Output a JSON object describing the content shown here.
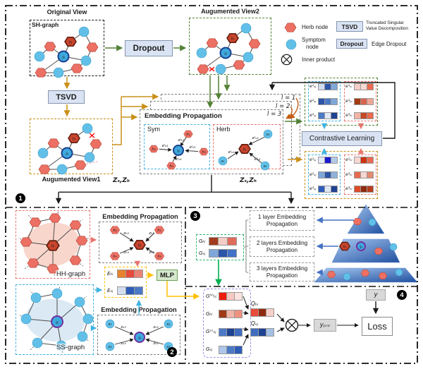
{
  "colors": {
    "herb": "#ec7063",
    "herb_stroke": "#b03a2e",
    "herb_special": "#c8452e",
    "herb_special_stroke": "#5f1a0a",
    "symptom": "#62c0e8",
    "symptom_stroke": "#3a9cc8",
    "symptom_special": "#3fa8dc",
    "symptom_special_stroke": "#17408f",
    "purple_ring": "#7030a0",
    "green": "#538135",
    "gold": "#c99018",
    "bright_green": "#00b050",
    "cyan": "#3fb3e0",
    "pink": "#e8756d",
    "blue": "#4472c4",
    "yellow": "#ffc000",
    "orange_curl": "#c55a11",
    "button_fill": "#dae3f3",
    "button_border": "#8496b0",
    "gray_box": "#d9d9d9",
    "mlp_fill": "#d5e8cc",
    "mlp_border": "#6da258",
    "purple_box_border": "#9f8fe8",
    "e_box_border": "#ffc000",
    "g_box_border": "#2eb872"
  },
  "badges": [
    "1",
    "2",
    "3",
    "4"
  ],
  "top": {
    "original_view": "Original View",
    "sh_label": "SH-graph",
    "dropout": "Dropout",
    "tsvd": "TSVD",
    "av2_title": "Augumented View2",
    "av1_title": "Augumented View1",
    "h_label": "hᵢ",
    "s_label": "sⱼ"
  },
  "legend": {
    "herb": "Herb node",
    "symptom_line1": "Symptom",
    "symptom_line2": "node",
    "tsvd": "TSVD",
    "tsvd_desc_line1": "Truncated Singular",
    "tsvd_desc_line2": "Value Decomposition",
    "dropout": "Dropout",
    "dropout_desc": "Edge Dropout",
    "inner_product": "Inner product"
  },
  "ep": {
    "title": "Embedding Propagation",
    "layers": [
      "l = 1",
      "l = 2",
      "l = 3"
    ],
    "sym": {
      "label": "Sym",
      "center": "sⱼ",
      "neighbors": [
        {
          "node": "h₁",
          "edge": "eˡₕ₁"
        },
        {
          "node": "h₂",
          "edge": "eˡₕ₂"
        },
        {
          "node": "h₃",
          "edge": "eˡₕ₃"
        },
        {
          "node": "h₄",
          "edge": "eˡₕ₄"
        }
      ]
    },
    "herb": {
      "label": "Herb",
      "center": "hᵢ",
      "neighbors": [
        {
          "node": "s₄",
          "edge": "eˡₛ₄"
        },
        {
          "node": "s₁",
          "edge": "eˡₛ₁"
        },
        {
          "node": "s₃",
          "edge": "eˡₛ₃"
        }
      ]
    }
  },
  "z_labels": {
    "left": "Zₛ,Zₕ",
    "right": "Zₛ,Zₕ"
  },
  "contrastive": {
    "button": "Contrastive Learning",
    "view2": {
      "sym_rows": [
        {
          "label": "e¹ₛⱼ",
          "cells": [
            "#cfdcef",
            "#2b55a8",
            "#7fa7d9"
          ]
        },
        {
          "label": "e²ₛⱼ",
          "cells": [
            "#2b55a8",
            "#4b79c6",
            "#7fa7d9"
          ]
        },
        {
          "label": "e³ₛⱼ",
          "cells": [
            "#4b79c6",
            "#dfe8f5",
            "#1e4191"
          ]
        }
      ],
      "herb_rows": [
        {
          "label": "e¹ₕᵢ",
          "cells": [
            "#f4cdc6",
            "#f7d8d2",
            "#e96a50"
          ]
        },
        {
          "label": "e²ₕᵢ",
          "cells": [
            "#a33c12",
            "#d96450",
            "#efa795"
          ]
        },
        {
          "label": "e³ₕᵢ",
          "cells": [
            "#f2b4a6",
            "#c24a28",
            "#e96a50"
          ]
        }
      ]
    },
    "view1": {
      "sym_rows": [
        {
          "label": "e¹ₛⱼ",
          "cells": [
            "#e2eaf6",
            "#1b1bd0",
            "#b3c9e8"
          ]
        },
        {
          "label": "e²ₛⱼ",
          "cells": [
            "#7fa7d9",
            "#2b55a8",
            "#8fb2dd"
          ]
        },
        {
          "label": "e³ₛⱼ",
          "cells": [
            "#2e5cb8",
            "#dfe8f5",
            "#1e4191"
          ]
        }
      ],
      "herb_rows": [
        {
          "label": "e¹ₕᵢ",
          "cells": [
            "#f7d8d2",
            "#cd3412",
            "#e96a50"
          ]
        },
        {
          "label": "e²ₕᵢ",
          "cells": [
            "#e96a50",
            "#f7d8d2",
            "#e28a72"
          ]
        },
        {
          "label": "e³ₕᵢ",
          "cells": [
            "#dc4a28",
            "#8e2a10",
            "#b53c1c"
          ]
        }
      ]
    }
  },
  "sec2": {
    "hh": {
      "graph_label": "HH-graph",
      "ep_title": "Embedding Propagation",
      "center": "hᵢ",
      "neighbors": [
        {
          "node": "h₂",
          "edge": "zₕ₂"
        },
        {
          "node": "h₁",
          "edge": "zₕ₁"
        },
        {
          "node": "h₄",
          "edge": "zₕ₄"
        },
        {
          "node": "h₅",
          "edge": "zₕ₅"
        }
      ]
    },
    "ss": {
      "graph_label": "SS-graph",
      "ep_title": "Embedding Propagation",
      "center": "sⱼ",
      "neighbors": [
        {
          "node": "s₃",
          "edge": "zₛ₃"
        },
        {
          "node": "s₂",
          "edge": "zₛ₂"
        },
        {
          "node": "s₄",
          "edge": "zₛ₄"
        },
        {
          "node": "s₅",
          "edge": "zₛ₅"
        }
      ]
    },
    "e_rows": [
      {
        "label": "Eₕᵢ",
        "cells": [
          "#e8822c",
          "#e84a3c",
          "#ea8374"
        ]
      },
      {
        "label": "Eₛⱼ",
        "cells": [
          "#d4def0",
          "#2e5cb8",
          "#4b79c6"
        ]
      }
    ],
    "mlp": "MLP"
  },
  "sec3": {
    "g_rows": [
      {
        "label": "Gₕᵢ",
        "cells": [
          "#a33c1e",
          "#f4cdc6",
          "#e06b5a"
        ]
      },
      {
        "label": "Gₛⱼ",
        "cells": [
          "#7fa7d9",
          "#2b55a8",
          "#3f72c8"
        ]
      }
    ],
    "layer_boxes": [
      "1 layer Embedding Propagation",
      "2 layers Embedding Propagation",
      "3 layers Embedding Propagation"
    ],
    "pyramid": {
      "herb": "hᵢ",
      "sym": "sⱼ"
    }
  },
  "sec4": {
    "g_rows": [
      {
        "label": "Gʰʰₕᵢ",
        "cells": [
          "#ee1c0c",
          "#f6c9c2",
          "#fbe4e0"
        ]
      },
      {
        "label": "Gₕᵢ",
        "cells": [
          "#9e3a16",
          "#f2b4a6",
          "#ee9180"
        ]
      },
      {
        "label": "Gˢˢₛⱼ",
        "cells": [
          "#4b79c6",
          "#1e4191",
          "#3f6cbe"
        ]
      },
      {
        "label": "Gₛⱼ",
        "cells": [
          "#aec7e8",
          "#4b79c6",
          "#2e5cb8"
        ]
      }
    ],
    "q_rows": [
      {
        "label": "Qₕᵢ",
        "cells": [
          "#e84a3c",
          "#8e2a10",
          "#f6cfc8"
        ]
      },
      {
        "label": "Qₛⱼ",
        "cells": [
          "#3f6cbe",
          "#1e4191",
          "#a3bfe4"
        ]
      }
    ],
    "y": "y",
    "y_pre": "yₚᵣₑ",
    "loss": "Loss"
  }
}
